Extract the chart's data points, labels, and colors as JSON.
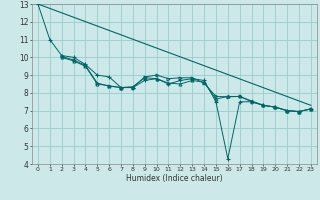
{
  "xlabel": "Humidex (Indice chaleur)",
  "bg_color": "#cce8e8",
  "grid_color": "#99cccc",
  "line_color": "#006666",
  "xlim": [
    -0.5,
    23.5
  ],
  "ylim": [
    4,
    13
  ],
  "xticks": [
    0,
    1,
    2,
    3,
    4,
    5,
    6,
    7,
    8,
    9,
    10,
    11,
    12,
    13,
    14,
    15,
    16,
    17,
    18,
    19,
    20,
    21,
    22,
    23
  ],
  "yticks": [
    4,
    5,
    6,
    7,
    8,
    9,
    10,
    11,
    12,
    13
  ],
  "series1_x": [
    0,
    1,
    2,
    3,
    4,
    5,
    6,
    7,
    8,
    9,
    10,
    11,
    12,
    13,
    14,
    15,
    16,
    17,
    18,
    19,
    20,
    21,
    22,
    23
  ],
  "series1_y": [
    13.0,
    11.0,
    10.1,
    10.0,
    9.6,
    9.0,
    8.9,
    8.3,
    8.3,
    8.7,
    8.8,
    8.5,
    8.7,
    8.8,
    8.7,
    7.5,
    4.3,
    7.5,
    7.5,
    7.3,
    7.2,
    7.0,
    6.95,
    7.1
  ],
  "series2_x": [
    2,
    3,
    4,
    5,
    6,
    7,
    8,
    9,
    10,
    11,
    12,
    13,
    14,
    15,
    16,
    17,
    18,
    19,
    20,
    21,
    22,
    23
  ],
  "series2_y": [
    10.0,
    9.8,
    9.5,
    8.5,
    8.4,
    8.3,
    8.35,
    8.85,
    8.8,
    8.55,
    8.5,
    8.7,
    8.6,
    7.65,
    7.8,
    7.8,
    7.55,
    7.3,
    7.2,
    7.0,
    6.95,
    7.1
  ],
  "series3_x": [
    2,
    3,
    4,
    5,
    6,
    7,
    8,
    9,
    10,
    11,
    12,
    13,
    14,
    15,
    16,
    17,
    18,
    19,
    20,
    21,
    22,
    23
  ],
  "series3_y": [
    10.05,
    9.85,
    9.55,
    8.55,
    8.38,
    8.3,
    8.3,
    8.9,
    9.0,
    8.8,
    8.85,
    8.85,
    8.55,
    7.8,
    7.78,
    7.8,
    7.5,
    7.3,
    7.2,
    7.0,
    6.95,
    7.1
  ],
  "trend_x": [
    0,
    23
  ],
  "trend_y": [
    13.0,
    7.3
  ]
}
